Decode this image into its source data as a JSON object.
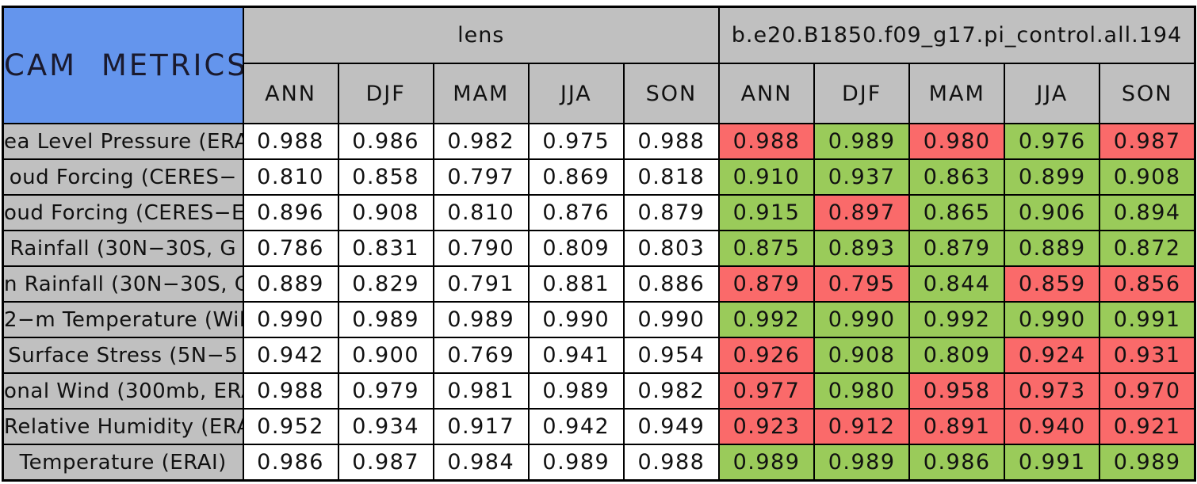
{
  "colors": {
    "header_blue": "#6495ED",
    "header_gray": "#C0C0C0",
    "cell_white": "#FFFFFF",
    "good_green": "#9ACB5A",
    "bad_red": "#FA6A6A",
    "border_black": "#000000"
  },
  "chart_data": {
    "type": "table",
    "title": "CAM METRICS",
    "column_groups": [
      {
        "name": "lens"
      },
      {
        "name": "b.e20.B1850.f09_g17.pi_control.all.194"
      }
    ],
    "seasons": [
      "ANN",
      "DJF",
      "MAM",
      "JJA",
      "SON"
    ],
    "rows": [
      {
        "label": "ea Level Pressure (ERA",
        "lens_values": [
          "0.988",
          "0.986",
          "0.982",
          "0.975",
          "0.988"
        ],
        "control_values": [
          "0.988",
          "0.989",
          "0.980",
          "0.976",
          "0.987"
        ],
        "control_cell_colors": [
          "red",
          "green",
          "red",
          "green",
          "red"
        ]
      },
      {
        "label": "oud Forcing (CERES−",
        "lens_values": [
          "0.810",
          "0.858",
          "0.797",
          "0.869",
          "0.818"
        ],
        "control_values": [
          "0.910",
          "0.937",
          "0.863",
          "0.899",
          "0.908"
        ],
        "control_cell_colors": [
          "green",
          "green",
          "green",
          "green",
          "green"
        ]
      },
      {
        "label": "oud Forcing (CERES−E",
        "lens_values": [
          "0.896",
          "0.908",
          "0.810",
          "0.876",
          "0.879"
        ],
        "control_values": [
          "0.915",
          "0.897",
          "0.865",
          "0.906",
          "0.894"
        ],
        "control_cell_colors": [
          "green",
          "red",
          "green",
          "green",
          "green"
        ]
      },
      {
        "label": "Rainfall (30N−30S, G",
        "lens_values": [
          "0.786",
          "0.831",
          "0.790",
          "0.809",
          "0.803"
        ],
        "control_values": [
          "0.875",
          "0.893",
          "0.879",
          "0.889",
          "0.872"
        ],
        "control_cell_colors": [
          "green",
          "green",
          "green",
          "green",
          "green"
        ]
      },
      {
        "label": "n Rainfall (30N−30S, G",
        "lens_values": [
          "0.889",
          "0.829",
          "0.791",
          "0.881",
          "0.886"
        ],
        "control_values": [
          "0.879",
          "0.795",
          "0.844",
          "0.859",
          "0.856"
        ],
        "control_cell_colors": [
          "red",
          "red",
          "green",
          "red",
          "red"
        ]
      },
      {
        "label": "2−m Temperature (Wil",
        "lens_values": [
          "0.990",
          "0.989",
          "0.989",
          "0.990",
          "0.990"
        ],
        "control_values": [
          "0.992",
          "0.990",
          "0.992",
          "0.990",
          "0.991"
        ],
        "control_cell_colors": [
          "green",
          "green",
          "green",
          "green",
          "green"
        ]
      },
      {
        "label": "Surface Stress (5N−5",
        "lens_values": [
          "0.942",
          "0.900",
          "0.769",
          "0.941",
          "0.954"
        ],
        "control_values": [
          "0.926",
          "0.908",
          "0.809",
          "0.924",
          "0.931"
        ],
        "control_cell_colors": [
          "red",
          "green",
          "green",
          "red",
          "red"
        ]
      },
      {
        "label": "onal Wind (300mb, ERA",
        "lens_values": [
          "0.988",
          "0.979",
          "0.981",
          "0.989",
          "0.982"
        ],
        "control_values": [
          "0.977",
          "0.980",
          "0.958",
          "0.973",
          "0.970"
        ],
        "control_cell_colors": [
          "red",
          "green",
          "red",
          "red",
          "red"
        ]
      },
      {
        "label": "Relative Humidity (ERAI",
        "lens_values": [
          "0.952",
          "0.934",
          "0.917",
          "0.942",
          "0.949"
        ],
        "control_values": [
          "0.923",
          "0.912",
          "0.891",
          "0.940",
          "0.921"
        ],
        "control_cell_colors": [
          "red",
          "red",
          "red",
          "red",
          "red"
        ]
      },
      {
        "label": "Temperature (ERAI)",
        "lens_values": [
          "0.986",
          "0.987",
          "0.984",
          "0.989",
          "0.988"
        ],
        "control_values": [
          "0.989",
          "0.989",
          "0.986",
          "0.991",
          "0.989"
        ],
        "control_cell_colors": [
          "green",
          "green",
          "green",
          "green",
          "green"
        ]
      }
    ]
  }
}
